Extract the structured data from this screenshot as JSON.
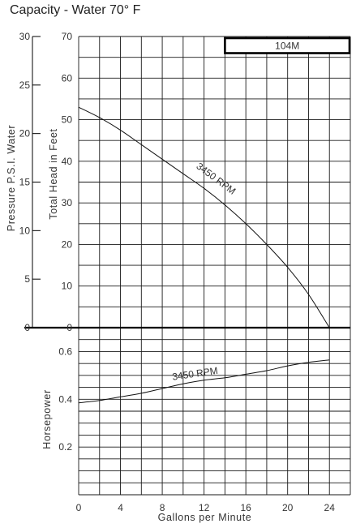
{
  "title": "Capacity - Water 70° F",
  "model_label": "104M",
  "chart_data": [
    {
      "type": "line",
      "name": "head",
      "xlabel": "Gallons per Minute",
      "ylabel": "Total Head in Feet",
      "ylabel_secondary": "Pressure P.S.I. Water",
      "xlim": [
        0,
        26
      ],
      "ylim": [
        0,
        70
      ],
      "ylim_secondary": [
        0,
        30
      ],
      "x_ticks": [
        0,
        4,
        8,
        12,
        16,
        20,
        24
      ],
      "y_ticks": [
        0,
        10,
        20,
        30,
        40,
        50,
        60,
        70
      ],
      "y_ticks_secondary": [
        0,
        5,
        10,
        15,
        20,
        25,
        30
      ],
      "grid": true,
      "series": [
        {
          "name": "3450 RPM",
          "x": [
            0,
            2,
            4,
            6,
            8,
            10,
            12,
            14,
            16,
            18,
            20,
            22,
            24
          ],
          "values": [
            53,
            50.5,
            47.5,
            44,
            40.5,
            37,
            33.5,
            29.5,
            25,
            20,
            14.5,
            8,
            0
          ]
        }
      ]
    },
    {
      "type": "line",
      "name": "horsepower",
      "xlabel": "Gallons per Minute",
      "ylabel": "Horsepower",
      "xlim": [
        0,
        26
      ],
      "ylim": [
        0,
        0.7
      ],
      "x_ticks": [
        0,
        4,
        8,
        12,
        16,
        20,
        24
      ],
      "y_ticks": [
        0.2,
        0.4,
        0.6
      ],
      "grid": true,
      "series": [
        {
          "name": "3450 RPM",
          "x": [
            0,
            2,
            4,
            6,
            8,
            10,
            12,
            14,
            16,
            18,
            20,
            22,
            24
          ],
          "values": [
            0.385,
            0.395,
            0.41,
            0.425,
            0.445,
            0.465,
            0.48,
            0.49,
            0.505,
            0.52,
            0.54,
            0.555,
            0.565
          ]
        }
      ]
    }
  ]
}
